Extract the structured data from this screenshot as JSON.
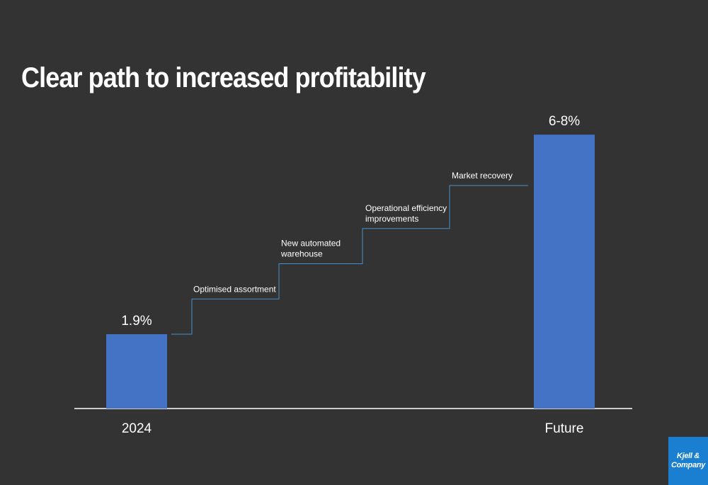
{
  "title": "Clear path to increased profitability",
  "colors": {
    "background": "#333333",
    "bar": "#4472c4",
    "connector": "#4a8fc9",
    "text": "#ffffff",
    "logo_bg": "#1b7fd1"
  },
  "logo": {
    "line1": "Kjell &",
    "line2": "Company"
  },
  "chart_data": {
    "type": "bar",
    "categories": [
      "2024",
      "Future"
    ],
    "values": [
      1.9,
      7.0
    ],
    "value_labels": [
      "1.9%",
      "6-8%"
    ],
    "steps": [
      {
        "label": [
          "Optimised assortment"
        ],
        "cumulative": 2.8
      },
      {
        "label": [
          "New automated",
          "warehouse"
        ],
        "cumulative": 3.7
      },
      {
        "label": [
          "Operational efficiency",
          "improvements"
        ],
        "cumulative": 4.6
      },
      {
        "label": [
          "Market recovery"
        ],
        "cumulative": 5.7
      }
    ],
    "ylim": [
      0,
      8
    ],
    "grid": false,
    "legend": "none"
  }
}
